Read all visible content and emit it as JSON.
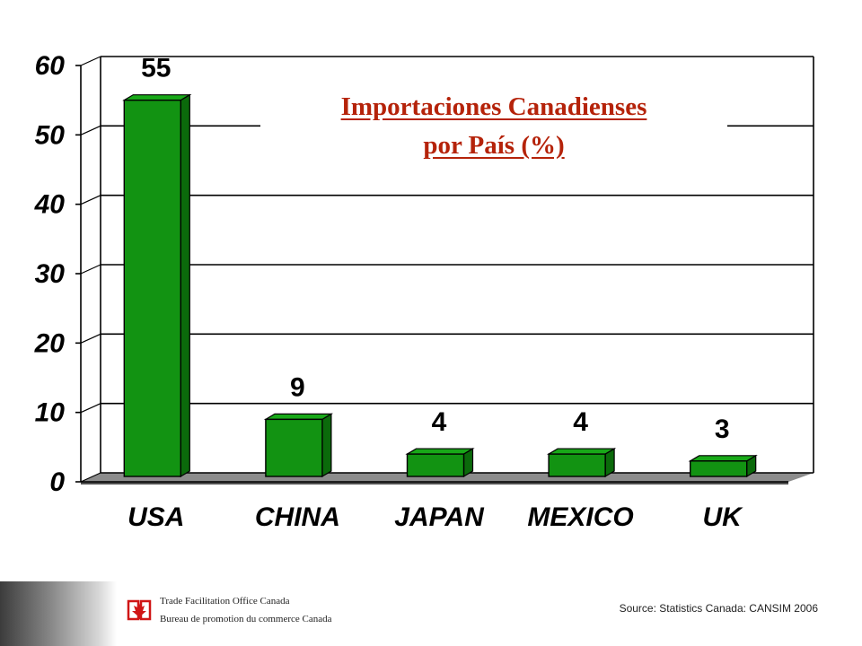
{
  "chart_data": {
    "type": "bar",
    "title_line1": "Importaciones Canadienses",
    "title_line2": "por País (%)",
    "categories": [
      "USA",
      "CHINA",
      "JAPAN",
      "MEXICO",
      "UK"
    ],
    "values": [
      55,
      9,
      4,
      4,
      3
    ],
    "value_labels": [
      "55",
      "9",
      "4",
      "4",
      "3"
    ],
    "yticks": [
      "0",
      "10",
      "20",
      "30",
      "40",
      "50",
      "60"
    ],
    "ylim": [
      0,
      60
    ],
    "grid": true,
    "bar_color": "#129312"
  },
  "footer": {
    "org_en": "Trade Facilitation Office Canada",
    "org_fr": "Bureau de promotion du commerce Canada",
    "source": "Source: Statistics Canada: CANSIM 2006"
  },
  "icons": {
    "logo": "maple-leaf-logo-icon"
  }
}
